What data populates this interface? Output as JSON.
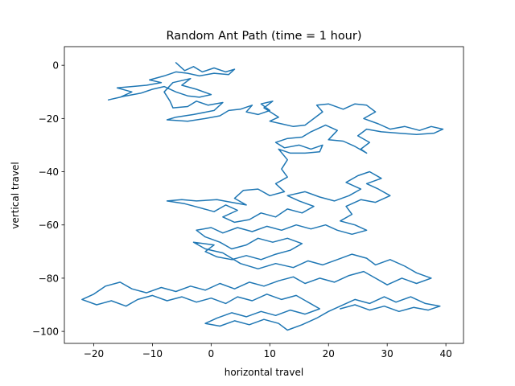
{
  "chart_data": {
    "type": "line",
    "title": "Random Ant Path (time = 1 hour)",
    "xlabel": "horizontal travel",
    "ylabel": "vertical travel",
    "xlim": [
      -25,
      43
    ],
    "ylim": [
      -104.5,
      7
    ],
    "xticks": [
      -20,
      -10,
      0,
      10,
      20,
      30,
      40
    ],
    "yticks": [
      0,
      -20,
      -40,
      -60,
      -80,
      -100
    ],
    "grid": false,
    "color": "#1f77b4",
    "series": [
      {
        "values": [
          [
            -6,
            1
          ],
          [
            -4.5,
            -2
          ],
          [
            -3,
            -0.5
          ],
          [
            -1.5,
            -2.5
          ],
          [
            0.5,
            -1
          ],
          [
            2.5,
            -2.5
          ],
          [
            4,
            -1.5
          ],
          [
            3,
            -3.5
          ],
          [
            0.5,
            -3
          ],
          [
            -2,
            -4
          ],
          [
            -4,
            -3
          ],
          [
            -6,
            -2.5
          ],
          [
            -8,
            -4
          ],
          [
            -10.5,
            -5.5
          ],
          [
            -8.5,
            -6.5
          ],
          [
            -11,
            -7.5
          ],
          [
            -13.5,
            -8
          ],
          [
            -16,
            -8.5
          ],
          [
            -13.5,
            -10
          ],
          [
            -15.5,
            -12
          ],
          [
            -17.5,
            -13
          ],
          [
            -14.5,
            -11.5
          ],
          [
            -12,
            -10.5
          ],
          [
            -10,
            -9
          ],
          [
            -8,
            -8
          ],
          [
            -6,
            -10
          ],
          [
            -4,
            -11.5
          ],
          [
            -2,
            -12
          ],
          [
            0,
            -11
          ],
          [
            -2.5,
            -9
          ],
          [
            -5,
            -7.5
          ],
          [
            -3.5,
            -5
          ],
          [
            -6.5,
            -6.5
          ],
          [
            -8,
            -10
          ],
          [
            -7,
            -13.5
          ],
          [
            -6.5,
            -16
          ],
          [
            -4,
            -15.5
          ],
          [
            -2.5,
            -13.5
          ],
          [
            -0.5,
            -15
          ],
          [
            2,
            -14
          ],
          [
            0.5,
            -17
          ],
          [
            -3,
            -18.5
          ],
          [
            -6,
            -19.5
          ],
          [
            -7.5,
            -20.5
          ],
          [
            -4,
            -21
          ],
          [
            -1,
            -20
          ],
          [
            1.5,
            -19
          ],
          [
            3,
            -17
          ],
          [
            5,
            -16.5
          ],
          [
            7,
            -15
          ],
          [
            6,
            -17.5
          ],
          [
            8,
            -18.5
          ],
          [
            10,
            -17
          ],
          [
            8.5,
            -14.5
          ],
          [
            10.5,
            -13.5
          ],
          [
            9,
            -16
          ],
          [
            11.5,
            -19.5
          ],
          [
            10,
            -21
          ],
          [
            12,
            -22
          ],
          [
            14,
            -23
          ],
          [
            16,
            -22.5
          ],
          [
            17.5,
            -20
          ],
          [
            19,
            -17.5
          ],
          [
            18,
            -15
          ],
          [
            20,
            -14.5
          ],
          [
            22.5,
            -16.5
          ],
          [
            24.5,
            -14.5
          ],
          [
            26.5,
            -15
          ],
          [
            28,
            -17.5
          ],
          [
            26,
            -20
          ],
          [
            28.5,
            -22
          ],
          [
            30.5,
            -24
          ],
          [
            33,
            -23
          ],
          [
            35.5,
            -24.5
          ],
          [
            37.5,
            -23
          ],
          [
            39.5,
            -24
          ],
          [
            38,
            -25.5
          ],
          [
            35,
            -26
          ],
          [
            32,
            -25.5
          ],
          [
            29,
            -25
          ],
          [
            26.5,
            -24
          ],
          [
            25,
            -26.5
          ],
          [
            27,
            -29
          ],
          [
            25.5,
            -31.5
          ],
          [
            26.5,
            -33
          ],
          [
            24.5,
            -30.5
          ],
          [
            22.5,
            -28.5
          ],
          [
            20,
            -28
          ],
          [
            21.5,
            -24.5
          ],
          [
            19.5,
            -22.5
          ],
          [
            17,
            -25
          ],
          [
            15.5,
            -27
          ],
          [
            13,
            -27.5
          ],
          [
            11,
            -29
          ],
          [
            12.5,
            -31
          ],
          [
            15,
            -30
          ],
          [
            17,
            -31.5
          ],
          [
            19,
            -30
          ],
          [
            18.5,
            -32.5
          ],
          [
            16,
            -33
          ],
          [
            13.5,
            -33
          ],
          [
            11.5,
            -31.5
          ],
          [
            13,
            -35.5
          ],
          [
            12,
            -39
          ],
          [
            13,
            -42
          ],
          [
            11,
            -44.5
          ],
          [
            12.5,
            -47.5
          ],
          [
            10,
            -49
          ],
          [
            8,
            -46.5
          ],
          [
            5.5,
            -47
          ],
          [
            4,
            -50
          ],
          [
            6,
            -52.5
          ],
          [
            3.5,
            -51.5
          ],
          [
            1,
            -50.5
          ],
          [
            -2.5,
            -51
          ],
          [
            -5,
            -50.5
          ],
          [
            -7.5,
            -51
          ],
          [
            -4.5,
            -52
          ],
          [
            -2,
            -53.5
          ],
          [
            0.5,
            -55
          ],
          [
            2.5,
            -52.5
          ],
          [
            4.5,
            -54.5
          ],
          [
            2,
            -57
          ],
          [
            4,
            -59
          ],
          [
            6.5,
            -58
          ],
          [
            8.5,
            -55.5
          ],
          [
            11,
            -57
          ],
          [
            13,
            -54
          ],
          [
            15.5,
            -55.5
          ],
          [
            17.5,
            -53
          ],
          [
            15,
            -51
          ],
          [
            13,
            -49
          ],
          [
            16,
            -47.5
          ],
          [
            18.5,
            -49.5
          ],
          [
            21,
            -51
          ],
          [
            23.5,
            -49
          ],
          [
            25.5,
            -46.5
          ],
          [
            23,
            -44
          ],
          [
            25,
            -41.5
          ],
          [
            27,
            -40
          ],
          [
            29,
            -42.5
          ],
          [
            26.5,
            -44.5
          ],
          [
            28.5,
            -46.5
          ],
          [
            30.5,
            -49
          ],
          [
            28,
            -51.5
          ],
          [
            25.5,
            -50.5
          ],
          [
            23,
            -53
          ],
          [
            24,
            -56
          ],
          [
            22,
            -58.5
          ],
          [
            24.5,
            -60
          ],
          [
            26.5,
            -62
          ],
          [
            24,
            -63.5
          ],
          [
            21.5,
            -62
          ],
          [
            19.5,
            -60
          ],
          [
            17,
            -61.5
          ],
          [
            14.5,
            -60
          ],
          [
            12,
            -62
          ],
          [
            9.5,
            -60.5
          ],
          [
            7,
            -62.5
          ],
          [
            4.5,
            -61
          ],
          [
            2,
            -63
          ],
          [
            0,
            -61
          ],
          [
            -2.5,
            -62
          ],
          [
            -1,
            -64.5
          ],
          [
            1.5,
            -66.5
          ],
          [
            3.5,
            -69
          ],
          [
            6,
            -67.5
          ],
          [
            8,
            -65
          ],
          [
            10.5,
            -66.5
          ],
          [
            13,
            -65
          ],
          [
            15.5,
            -67
          ],
          [
            13.5,
            -69.5
          ],
          [
            11,
            -71
          ],
          [
            8.5,
            -73
          ],
          [
            6,
            -71.5
          ],
          [
            3.5,
            -73
          ],
          [
            1,
            -72
          ],
          [
            -1,
            -70
          ],
          [
            0.5,
            -67.5
          ],
          [
            -3,
            -66.5
          ],
          [
            -1,
            -69
          ],
          [
            2,
            -70.5
          ],
          [
            5,
            -74.5
          ],
          [
            8,
            -76.5
          ],
          [
            11,
            -74.5
          ],
          [
            14,
            -76
          ],
          [
            16.5,
            -73.5
          ],
          [
            19,
            -75
          ],
          [
            21.5,
            -73
          ],
          [
            24,
            -71
          ],
          [
            26.5,
            -72.5
          ],
          [
            28,
            -75
          ],
          [
            30.5,
            -73
          ],
          [
            33,
            -75.5
          ],
          [
            35,
            -78
          ],
          [
            37.5,
            -80
          ],
          [
            35,
            -82
          ],
          [
            32.5,
            -80
          ],
          [
            30,
            -82.5
          ],
          [
            28,
            -80
          ],
          [
            26,
            -77.5
          ],
          [
            23.5,
            -79
          ],
          [
            21,
            -81.5
          ],
          [
            18.5,
            -80
          ],
          [
            16,
            -82
          ],
          [
            14,
            -79.5
          ],
          [
            11.5,
            -81
          ],
          [
            9,
            -83
          ],
          [
            6.5,
            -81.5
          ],
          [
            4,
            -84
          ],
          [
            1.5,
            -82
          ],
          [
            -1,
            -84.5
          ],
          [
            -3.5,
            -83
          ],
          [
            -6,
            -85
          ],
          [
            -8.5,
            -83.5
          ],
          [
            -11,
            -85.5
          ],
          [
            -13.5,
            -84
          ],
          [
            -15.5,
            -81.5
          ],
          [
            -18,
            -83
          ],
          [
            -20,
            -86
          ],
          [
            -22,
            -88
          ],
          [
            -19.5,
            -90
          ],
          [
            -17,
            -88.5
          ],
          [
            -14.5,
            -90.5
          ],
          [
            -12.5,
            -88
          ],
          [
            -10,
            -86.5
          ],
          [
            -7.5,
            -88.5
          ],
          [
            -5,
            -87
          ],
          [
            -2.5,
            -89
          ],
          [
            0,
            -87.5
          ],
          [
            2.5,
            -89.5
          ],
          [
            4.5,
            -87
          ],
          [
            7,
            -88.5
          ],
          [
            9.5,
            -86
          ],
          [
            12,
            -88
          ],
          [
            14.5,
            -86.5
          ],
          [
            16.5,
            -89
          ],
          [
            18.5,
            -91.5
          ],
          [
            16,
            -93.5
          ],
          [
            13.5,
            -92
          ],
          [
            11,
            -94
          ],
          [
            8.5,
            -92.5
          ],
          [
            6,
            -94.5
          ],
          [
            3.5,
            -93
          ],
          [
            1,
            -95
          ],
          [
            -1,
            -97
          ],
          [
            1.5,
            -98
          ],
          [
            4,
            -96
          ],
          [
            6.5,
            -97.5
          ],
          [
            9,
            -95.5
          ],
          [
            11.5,
            -97
          ],
          [
            13,
            -99.5
          ],
          [
            15.5,
            -97.5
          ],
          [
            18,
            -95
          ],
          [
            20,
            -92.5
          ],
          [
            22,
            -90.5
          ],
          [
            24.5,
            -88
          ],
          [
            27,
            -89.5
          ],
          [
            29.5,
            -87
          ],
          [
            31.5,
            -89
          ],
          [
            34,
            -87
          ],
          [
            36.5,
            -89.5
          ],
          [
            39,
            -90.5
          ],
          [
            37,
            -92
          ],
          [
            34.5,
            -91
          ],
          [
            32,
            -92.5
          ],
          [
            29.5,
            -90.5
          ],
          [
            27,
            -92
          ],
          [
            24.5,
            -90
          ],
          [
            22,
            -91.5
          ]
        ]
      }
    ]
  }
}
